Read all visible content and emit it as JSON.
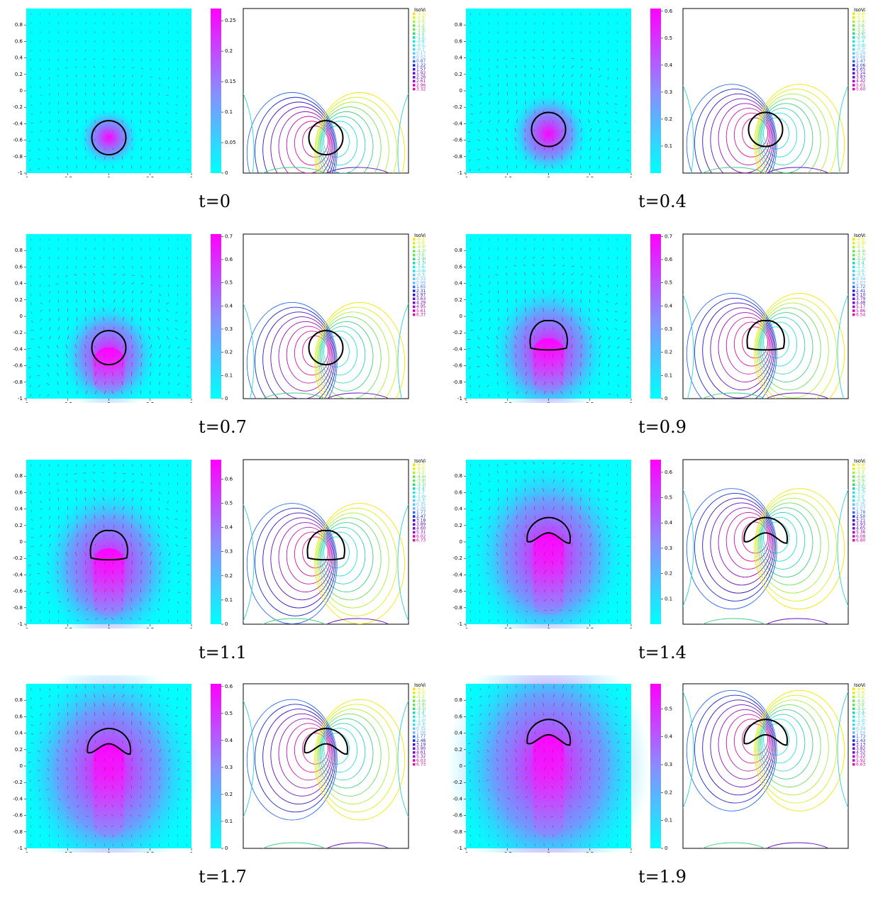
{
  "palette": {
    "cyan": "#00ffff",
    "magenta": "#ff00ff",
    "arrow": "#e0003a",
    "interface": "#000000",
    "contour_neg": [
      "#f5e600",
      "#d9f01a",
      "#a9f03a",
      "#6fe05a",
      "#3fd080",
      "#2ad0b0",
      "#2ae0e0"
    ],
    "contour_pos": [
      "#2a6cf0",
      "#1a2ad0",
      "#3a10c0",
      "#6a10c0",
      "#9a10c0",
      "#c010b0",
      "#e010a0"
    ]
  },
  "panels": [
    {
      "time_label": "t=0",
      "colorbar_ticks": [
        "0.25",
        "0.2",
        "0.15",
        "0.1",
        "0.05",
        "0"
      ],
      "colorbar_max": 0.27,
      "axis_ticks_x": [
        "-1",
        "-0.5",
        "0",
        "0.5",
        "1"
      ],
      "axis_ticks_y": [
        "0.8",
        "0.6",
        "0.4",
        "0.2",
        "0",
        "-0.2",
        "-0.4",
        "-0.6",
        "-0.8",
        "-1"
      ],
      "isovalue_title": "IsoValue",
      "isovalues": [
        "-3.32943",
        "-2.97385",
        "-2.62427",
        "-2.27469",
        "-1.92511",
        "-1.57553",
        "-1.22594",
        "-0.876362",
        "-0.526781",
        "-0.177199",
        "0.172382",
        "0.521963",
        "0.871545",
        "1.22113",
        "1.57071",
        "1.92029",
        "2.26987",
        "2.61945",
        "2.96903",
        "3.32943"
      ],
      "shape": "circle",
      "bubble_center_y": -0.57
    },
    {
      "time_label": "t=0.4",
      "colorbar_ticks": [
        "0.6",
        "0.5",
        "0.4",
        "0.3",
        "0.2",
        "0.1"
      ],
      "colorbar_max": 0.61,
      "axis_ticks_x": [
        "-1",
        "-0.5",
        "0",
        "0.5",
        "1"
      ],
      "axis_ticks_y": [
        "0.8",
        "0.6",
        "0.4",
        "0.2",
        "0",
        "-0.2",
        "-0.4",
        "-0.6",
        "-0.8",
        "-1"
      ],
      "isovalue_title": "IsoValue",
      "isovalues": [
        "-5.60458",
        "-5.0146",
        "-4.42462",
        "-3.83464",
        "-3.24466",
        "-2.65468",
        "-2.0647",
        "-1.47472",
        "-0.884737",
        "-0.294758",
        "0.295222",
        "0.885201",
        "1.47518",
        "2.06516",
        "2.65514",
        "3.24512",
        "3.8351",
        "4.42508",
        "5.01506",
        "5.60458"
      ],
      "shape": "circle",
      "bubble_center_y": -0.47
    },
    {
      "time_label": "t=0.7",
      "colorbar_ticks": [
        "0.7",
        "0.6",
        "0.5",
        "0.4",
        "0.3",
        "0.2",
        "0.1",
        "0"
      ],
      "colorbar_max": 0.71,
      "axis_ticks_x": [
        "-1",
        "-0.5",
        "0",
        "0.5",
        "1"
      ],
      "axis_ticks_y": [
        "0.8",
        "0.6",
        "0.4",
        "0.2",
        "0",
        "-0.2",
        "-0.4",
        "-0.6",
        "-0.8",
        "-1"
      ],
      "isovalue_title": "IsoValue",
      "isovalues": [
        "-6.37239",
        "-5.61165",
        "-4.95132",
        "-4.29079",
        "-3.63026",
        "-2.96972",
        "-2.30919",
        "-1.64866",
        "-0.988124",
        "-0.327591",
        "0.332941",
        "0.993474",
        "1.65401",
        "2.31454",
        "2.97507",
        "3.6356",
        "4.29614",
        "4.95667",
        "5.6172",
        "6.37239"
      ],
      "shape": "circle",
      "bubble_center_y": -0.38
    },
    {
      "time_label": "t=0.9",
      "colorbar_ticks": [
        "0.7",
        "0.6",
        "0.5",
        "0.4",
        "0.3",
        "0.2",
        "0.1",
        "0"
      ],
      "colorbar_max": 0.71,
      "axis_ticks_x": [
        "-1",
        "-0.5",
        "0",
        "0.5",
        "1"
      ],
      "axis_ticks_y": [
        "0.8",
        "0.6",
        "0.4",
        "0.2",
        "0",
        "-0.2",
        "-0.4",
        "-0.6",
        "-0.8",
        "-1"
      ],
      "isovalue_title": "IsoValue",
      "isovalues": [
        "-6.54999",
        "-5.8602",
        "-5.1704",
        "-4.48061",
        "-3.79081",
        "-3.10102",
        "-2.41123",
        "-1.72143",
        "-1.03164",
        "-0.341843",
        "0.347951",
        "1.03775",
        "1.72754",
        "2.41733",
        "3.10713",
        "3.79692",
        "4.48672",
        "5.17651",
        "5.8663",
        "6.54999"
      ],
      "shape": "flat",
      "bubble_center_y": -0.27
    },
    {
      "time_label": "t=1.1",
      "colorbar_ticks": [
        "0.6",
        "0.5",
        "0.4",
        "0.3",
        "0.2",
        "0.1",
        "0"
      ],
      "colorbar_max": 0.68,
      "axis_ticks_x": [
        "-1",
        "-0.5",
        "0",
        "0.5",
        "1"
      ],
      "axis_ticks_y": [
        "0.8",
        "0.6",
        "0.4",
        "0.2",
        "0",
        "-0.2",
        "-0.4",
        "-0.6",
        "-0.8",
        "-1"
      ],
      "isovalue_title": "IsoValue",
      "isovalues": [
        "-6.73023",
        "-6.02173",
        "-5.31335",
        "-4.60491",
        "-3.89647",
        "-3.18803",
        "-2.47959",
        "-1.77115",
        "-1.06271",
        "-0.354272",
        "0.354168",
        "1.06261",
        "1.77105",
        "2.47949",
        "3.18793",
        "3.89637",
        "4.60481",
        "5.31325",
        "6.02169",
        "6.73023"
      ],
      "shape": "flat",
      "bubble_center_y": -0.08
    },
    {
      "time_label": "t=1.4",
      "colorbar_ticks": [
        "0.6",
        "0.5",
        "0.4",
        "0.3",
        "0.2",
        "0.1"
      ],
      "colorbar_max": 0.65,
      "axis_ticks_x": [
        "-1",
        "-0.5",
        "0",
        "0.5",
        "1"
      ],
      "axis_ticks_y": [
        "0.8",
        "0.6",
        "0.4",
        "0.2",
        "0",
        "-0.2",
        "-0.4",
        "-0.6",
        "-0.8",
        "-1"
      ],
      "isovalue_title": "IsoValue",
      "isovalues": [
        "-6.80524",
        "-6.08915",
        "-5.37307",
        "-4.65698",
        "-3.9409",
        "-3.22482",
        "-2.50873",
        "-1.79265",
        "-1.07656",
        "-0.360478",
        "0.355606",
        "1.07169",
        "1.78777",
        "2.50386",
        "3.21994",
        "3.93603",
        "4.65211",
        "5.3682",
        "6.08428",
        "6.80524"
      ],
      "shape": "crescent",
      "bubble_center_y": 0.1
    },
    {
      "time_label": "t=1.7",
      "colorbar_ticks": [
        "0.6",
        "0.5",
        "0.4",
        "0.3",
        "0.2",
        "0.1",
        "0"
      ],
      "colorbar_max": 0.61,
      "axis_ticks_x": [
        "-1",
        "-0.5",
        "0",
        "0.5",
        "1"
      ],
      "axis_ticks_y": [
        "0.8",
        "0.6",
        "0.4",
        "0.2",
        "0",
        "-0.2",
        "-0.4",
        "-0.6",
        "-0.8",
        "-1"
      ],
      "isovalue_title": "IsoValue",
      "isovalues": [
        "-6.73281",
        "-6.02475",
        "-5.31443",
        "-4.60525",
        "-3.89606",
        "-3.18688",
        "-2.47769",
        "-1.7685",
        "-1.05931",
        "-0.350121",
        "0.359066",
        "1.06825",
        "1.77744",
        "2.48663",
        "3.19582",
        "3.90501",
        "4.6142",
        "5.32338",
        "6.03257",
        "6.73281"
      ],
      "shape": "crescent",
      "bubble_center_y": 0.26
    },
    {
      "time_label": "t=1.9",
      "colorbar_ticks": [
        "0.5",
        "0.4",
        "0.3",
        "0.2",
        "0.1",
        "0"
      ],
      "colorbar_max": 0.59,
      "axis_ticks_x": [
        "-1",
        "-0.5",
        "0",
        "0.5",
        "1"
      ],
      "axis_ticks_y": [
        "0.8",
        "0.6",
        "0.4",
        "0.2",
        "0",
        "-0.2",
        "-0.4",
        "-0.6",
        "-0.8",
        "-1"
      ],
      "isovalue_title": "IsoValue",
      "isovalues": [
        "-6.63088",
        "-5.92335",
        "-5.23316",
        "-4.53606",
        "-3.83943",
        "-3.14231",
        "-2.4452",
        "-1.74809",
        "-1.05097",
        "-0.353858",
        "0.343257",
        "1.04037",
        "1.73748",
        "2.4346",
        "3.13171",
        "3.82883",
        "4.52594",
        "5.22306",
        "5.92017",
        "6.63088"
      ],
      "shape": "crescent",
      "bubble_center_y": 0.37
    }
  ]
}
